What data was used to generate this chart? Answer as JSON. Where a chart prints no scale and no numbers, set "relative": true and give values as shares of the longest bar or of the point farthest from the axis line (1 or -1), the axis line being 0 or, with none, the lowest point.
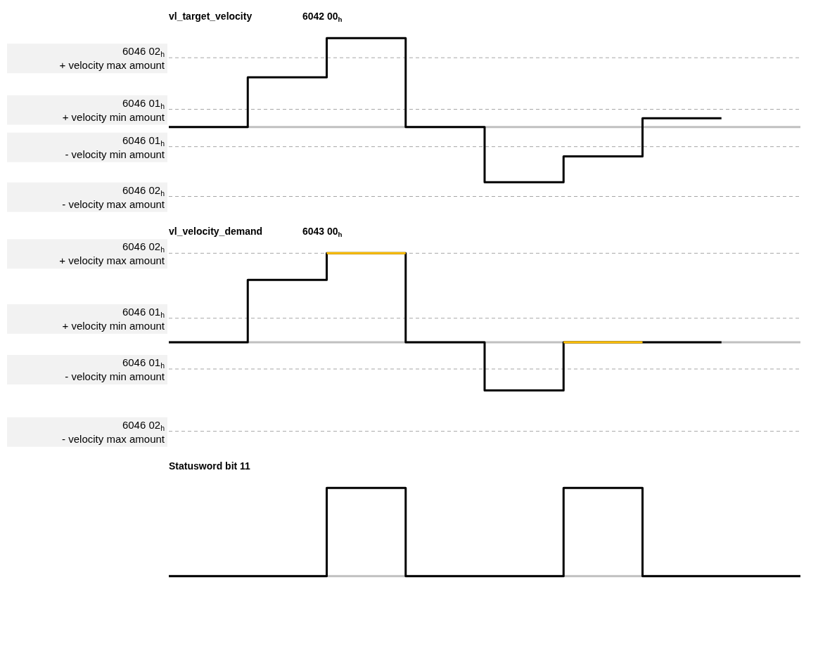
{
  "chart_data": [
    {
      "type": "step",
      "title": "vl_target_velocity",
      "subtitle": "6042 00$_{h}$",
      "relative": true,
      "legend": false,
      "grid": false,
      "categories": [
        null,
        null,
        null,
        null,
        null,
        null,
        null,
        null,
        null
      ],
      "series": [
        {
          "color": "#000000",
          "values": [
            0,
            0.56,
            1,
            0,
            -0.62,
            -0.33,
            0.1,
            0.1,
            null
          ]
        }
      ],
      "ref_lines": [
        {
          "axis": "y",
          "value": 0.78,
          "label": "6046 02$_{h}$\n+ velocity max amount",
          "color": "#a6a6a6",
          "line_style": "dashed"
        },
        {
          "axis": "y",
          "value": 0.2,
          "label": "6046 01$_{h}$\n+ velocity min amount",
          "color": "#a6a6a6",
          "line_style": "dashed"
        },
        {
          "axis": "y",
          "value": -0.22,
          "label": "6046 01$_{h}$\n- velocity min amount",
          "color": "#a6a6a6",
          "line_style": "dashed"
        },
        {
          "axis": "y",
          "value": -0.78,
          "label": "6046 02$_{h}$\n- velocity max amount",
          "color": "#a6a6a6",
          "line_style": "dashed"
        }
      ]
    },
    {
      "type": "step",
      "title": "vl_velocity_demand",
      "subtitle": "6043 00$_{h}$",
      "relative": true,
      "legend": false,
      "grid": false,
      "categories": [
        null,
        null,
        null,
        null,
        null,
        null,
        null,
        null,
        null
      ],
      "series": [
        {
          "color": "#000000",
          "values": [
            0,
            0.7,
            1,
            0,
            -0.54,
            0,
            0,
            0,
            null
          ]
        },
        {
          "color": "#ffc000",
          "values": [
            null,
            null,
            1,
            1,
            null,
            0,
            0,
            null,
            null
          ]
        }
      ],
      "ref_lines": [
        {
          "axis": "y",
          "value": 1,
          "label": "6046 02$_{h}$\n+ velocity max amount",
          "color": "#a6a6a6",
          "line_style": "dashed"
        },
        {
          "axis": "y",
          "value": 0.27,
          "label": "6046 01$_{h}$\n+ velocity min amount",
          "color": "#a6a6a6",
          "line_style": "dashed"
        },
        {
          "axis": "y",
          "value": -0.3,
          "label": "6046 01$_{h}$\n- velocity min amount",
          "color": "#a6a6a6",
          "line_style": "dashed"
        },
        {
          "axis": "y",
          "value": -1,
          "label": "6046 02$_{h}$\n- velocity max amount",
          "color": "#a6a6a6",
          "line_style": "dashed"
        }
      ]
    },
    {
      "type": "step",
      "title": "Statusword bit 11",
      "relative": true,
      "legend": false,
      "grid": false,
      "categories": [
        null,
        null,
        null,
        null,
        null,
        null,
        null,
        null,
        null
      ],
      "series": [
        {
          "color": "#000000",
          "values": [
            0,
            0,
            1,
            0,
            0,
            1,
            0,
            0,
            0
          ]
        }
      ]
    }
  ]
}
